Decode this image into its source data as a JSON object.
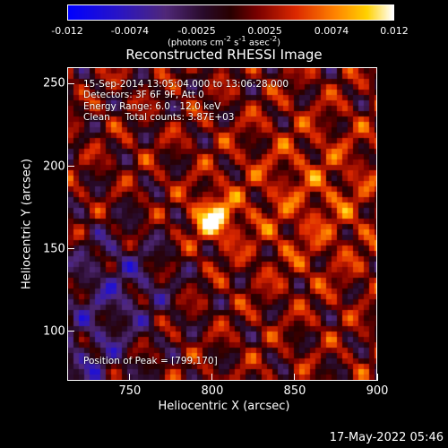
{
  "colorbar": {
    "ticks": [
      "-0.012",
      "-0.0074",
      "-0.0025",
      "0.0025",
      "0.0074",
      "0.012"
    ],
    "units_prefix": "(photons cm",
    "units_exp1": "-2",
    "units_mid": " s",
    "units_exp2": "-1",
    "units_mid2": " asec",
    "units_exp3": "-2",
    "units_suffix": ")"
  },
  "chart_data": {
    "type": "heatmap",
    "title": "Reconstructed RHESSI Image",
    "xlabel": "Heliocentric X (arcsec)",
    "ylabel": "Heliocentric Y (arcsec)",
    "xlim": [
      712,
      900
    ],
    "ylim": [
      70,
      260
    ],
    "xticks": [
      750,
      800,
      850,
      900
    ],
    "yticks": [
      100,
      150,
      200,
      250
    ],
    "color_range": [
      -0.012,
      0.012
    ],
    "colormap": "rainbow-ish blue-purple-red-orange-yellow-white",
    "peak": [
      799,
      170
    ],
    "annotations": [
      "15-Sep-2014 13:05:04.000 to 13:06:28.000",
      "Detectors: 3F 6F 9F, Att 0",
      "Energy Range: 6.0 - 12.0 keV",
      "Clean     Total counts: 3.87E+03"
    ],
    "peak_label": "Position of Peak = [799,170]"
  },
  "datestamp": "17-May-2022 05:46"
}
